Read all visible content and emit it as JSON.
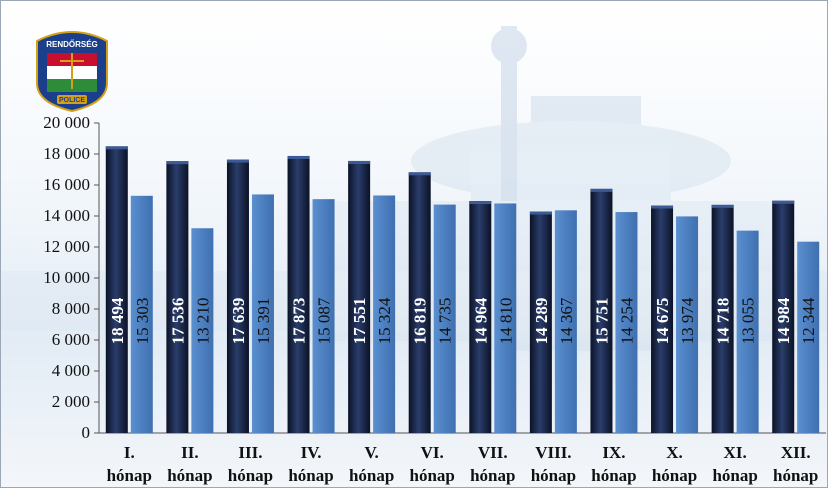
{
  "logo": {
    "top_text": "RENDŐRSÉG",
    "bottom_text": "POLICE",
    "colors": [
      "#c8102e",
      "#ffffff",
      "#2e8b3a",
      "#1c3f8c",
      "#d4a017"
    ]
  },
  "chart_data": {
    "type": "bar",
    "title": "",
    "xlabel": "",
    "ylabel": "",
    "ylim": [
      0,
      20000
    ],
    "yticks": [
      0,
      2000,
      4000,
      6000,
      8000,
      10000,
      12000,
      14000,
      16000,
      18000,
      20000
    ],
    "ytick_labels": [
      "0",
      "2 000",
      "4 000",
      "6 000",
      "8 000",
      "10 000",
      "12 000",
      "14 000",
      "16 000",
      "18 000",
      "20 000"
    ],
    "grid": false,
    "legend": "none",
    "categories": [
      [
        "I.",
        "hónap"
      ],
      [
        "II.",
        "hónap"
      ],
      [
        "III.",
        "hónap"
      ],
      [
        "IV.",
        "hónap"
      ],
      [
        "V.",
        "hónap"
      ],
      [
        "VI.",
        "hónap"
      ],
      [
        "VII.",
        "hónap"
      ],
      [
        "VIII.",
        "hónap"
      ],
      [
        "IX.",
        "hónap"
      ],
      [
        "X.",
        "hónap"
      ],
      [
        "XI.",
        "hónap"
      ],
      [
        "XII.",
        "hónap"
      ]
    ],
    "series": [
      {
        "color": "#13203f",
        "label_color": "#ffffff",
        "values": [
          18494,
          17536,
          17639,
          17873,
          17551,
          16819,
          14964,
          14289,
          15751,
          14675,
          14718,
          14984
        ],
        "labels": [
          "18 494",
          "17 536",
          "17 639",
          "17 873",
          "17 551",
          "16 819",
          "14 964",
          "14 289",
          "15 751",
          "14 675",
          "14 718",
          "14 984"
        ]
      },
      {
        "color": "#4a7fc1",
        "label_color": "#111111",
        "values": [
          15303,
          13210,
          15391,
          15087,
          15324,
          14735,
          14810,
          14367,
          14254,
          13974,
          13055,
          12344
        ],
        "labels": [
          "15 303",
          "13 210",
          "15 391",
          "15 087",
          "15 324",
          "14 735",
          "14 810",
          "14 367",
          "14 254",
          "13 974",
          "13 055",
          "12 344"
        ]
      }
    ]
  }
}
